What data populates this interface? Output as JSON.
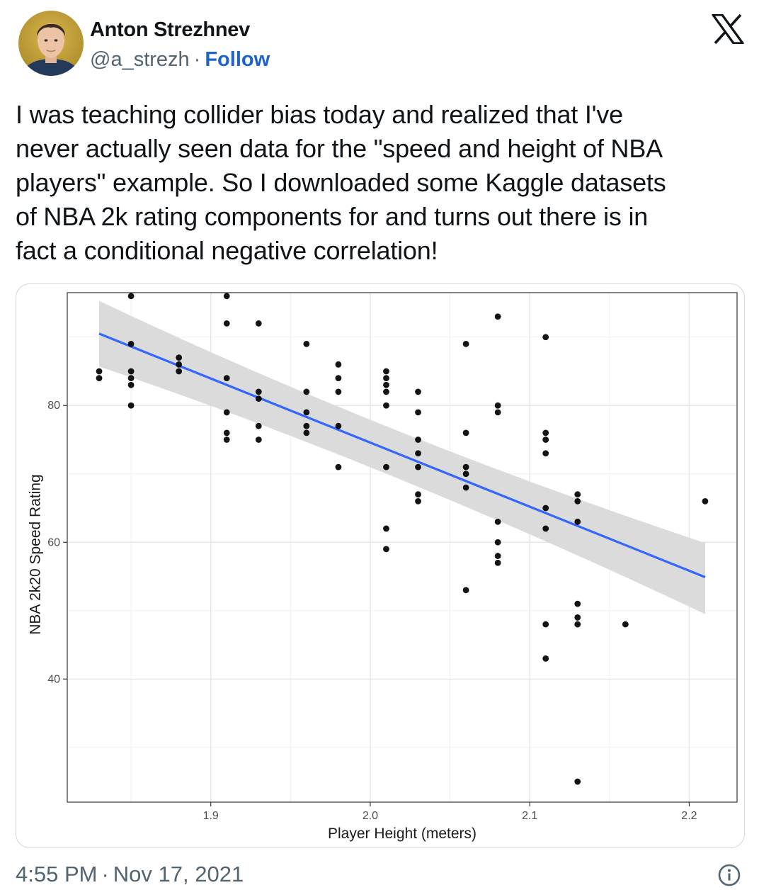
{
  "author": {
    "name": "Anton Strezhnev",
    "handle": "@a_strezh",
    "separator": "·",
    "follow_label": "Follow"
  },
  "brand": {
    "logo_icon": "x-logo-icon"
  },
  "tweet": {
    "lines": [
      "I was teaching collider bias today and realized that I've",
      "never actually seen data for the \"speed and height of NBA",
      "players\" example. So I downloaded some Kaggle datasets",
      "of NBA 2k rating components for and turns out there is in",
      "fact a conditional negative correlation!"
    ]
  },
  "footer": {
    "time": "4:55 PM",
    "separator": "·",
    "date": "Nov 17, 2021",
    "info_icon": "info-icon"
  },
  "colors": {
    "follow": "#1d63c9",
    "fit_line": "#3366ff",
    "confidence_band": "#d9d9d9",
    "points": "#000000"
  },
  "chart_data": {
    "type": "scatter",
    "xlabel": "Player Height (meters)",
    "ylabel": "NBA 2k20 Speed Rating",
    "xlim": [
      1.81,
      2.23
    ],
    "ylim": [
      22,
      96.5
    ],
    "x_ticks": [
      1.9,
      2.0,
      2.1,
      2.2
    ],
    "x_tick_labels": [
      "1.9",
      "2.0",
      "2.1",
      "2.2"
    ],
    "y_ticks": [
      40,
      60,
      80
    ],
    "y_tick_labels": [
      "40",
      "60",
      "80"
    ],
    "grid": true,
    "fit": {
      "method": "linear",
      "x": [
        1.83,
        2.21
      ],
      "y": [
        90.5,
        54.9
      ],
      "ci_upper": [
        95.3,
        59.9
      ],
      "ci_lower": [
        85.7,
        49.5
      ],
      "ci_mid_x": 2.01,
      "ci_mid_upper": 75.4,
      "ci_mid_lower": 71.5
    },
    "points": [
      [
        1.83,
        85
      ],
      [
        1.83,
        84
      ],
      [
        1.85,
        96
      ],
      [
        1.85,
        89
      ],
      [
        1.85,
        85
      ],
      [
        1.85,
        84
      ],
      [
        1.85,
        83
      ],
      [
        1.85,
        80
      ],
      [
        1.88,
        87
      ],
      [
        1.88,
        86
      ],
      [
        1.88,
        85
      ],
      [
        1.91,
        96
      ],
      [
        1.91,
        92
      ],
      [
        1.91,
        84
      ],
      [
        1.91,
        79
      ],
      [
        1.91,
        76
      ],
      [
        1.91,
        75
      ],
      [
        1.93,
        92
      ],
      [
        1.93,
        82
      ],
      [
        1.93,
        81
      ],
      [
        1.93,
        77
      ],
      [
        1.93,
        75
      ],
      [
        1.96,
        89
      ],
      [
        1.96,
        82
      ],
      [
        1.96,
        79
      ],
      [
        1.96,
        77
      ],
      [
        1.96,
        76
      ],
      [
        1.98,
        86
      ],
      [
        1.98,
        84
      ],
      [
        1.98,
        82
      ],
      [
        1.98,
        77
      ],
      [
        1.98,
        71
      ],
      [
        2.01,
        85
      ],
      [
        2.01,
        84
      ],
      [
        2.01,
        83
      ],
      [
        2.01,
        82
      ],
      [
        2.01,
        80
      ],
      [
        2.01,
        71
      ],
      [
        2.01,
        62
      ],
      [
        2.01,
        59
      ],
      [
        2.03,
        82
      ],
      [
        2.03,
        79
      ],
      [
        2.03,
        75
      ],
      [
        2.03,
        73
      ],
      [
        2.03,
        71
      ],
      [
        2.03,
        67
      ],
      [
        2.03,
        66
      ],
      [
        2.06,
        89
      ],
      [
        2.06,
        76
      ],
      [
        2.06,
        71
      ],
      [
        2.06,
        70
      ],
      [
        2.06,
        68
      ],
      [
        2.06,
        53
      ],
      [
        2.08,
        93
      ],
      [
        2.08,
        80
      ],
      [
        2.08,
        79
      ],
      [
        2.08,
        63
      ],
      [
        2.08,
        60
      ],
      [
        2.08,
        58
      ],
      [
        2.08,
        57
      ],
      [
        2.11,
        90
      ],
      [
        2.11,
        76
      ],
      [
        2.11,
        75
      ],
      [
        2.11,
        73
      ],
      [
        2.11,
        65
      ],
      [
        2.11,
        62
      ],
      [
        2.11,
        48
      ],
      [
        2.11,
        43
      ],
      [
        2.13,
        67
      ],
      [
        2.13,
        66
      ],
      [
        2.13,
        63
      ],
      [
        2.13,
        51
      ],
      [
        2.13,
        49
      ],
      [
        2.13,
        48
      ],
      [
        2.13,
        25
      ],
      [
        2.16,
        48
      ],
      [
        2.21,
        66
      ]
    ]
  }
}
